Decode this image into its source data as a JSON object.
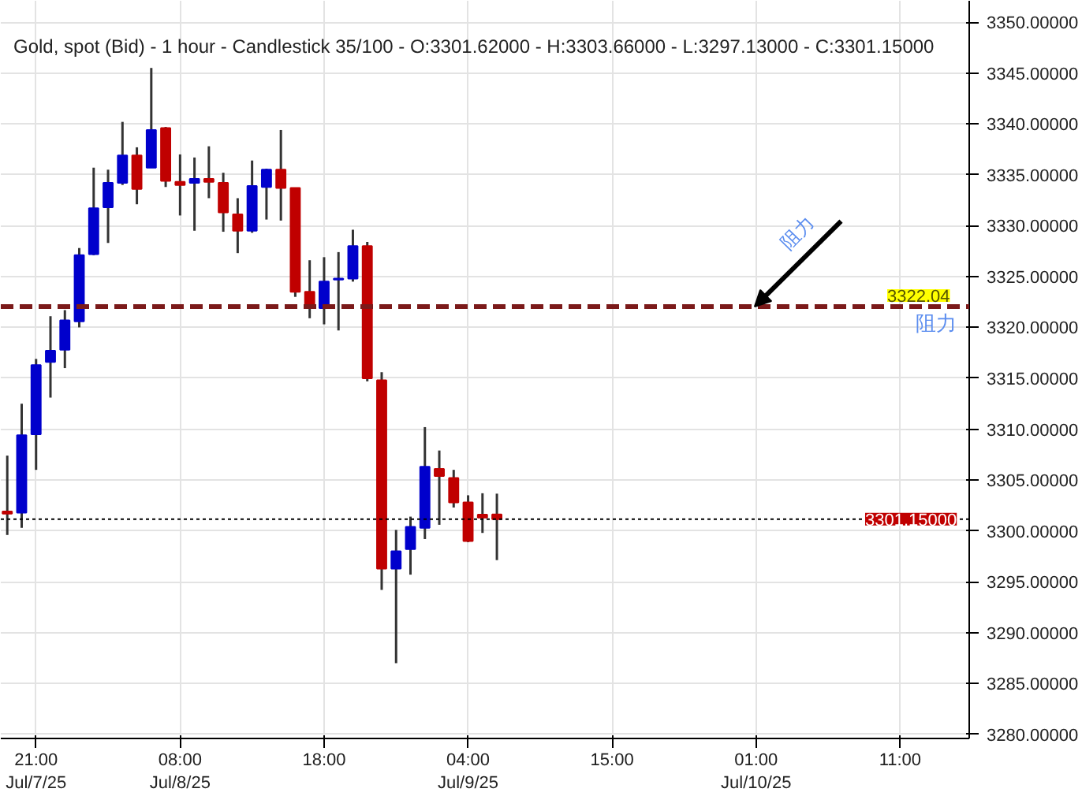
{
  "chart_data": {
    "type": "candlestick",
    "title": "Gold, spot (Bid) - 1 hour - Candlestick   35/100 - O:3301.62000 - H:3303.66000 - L:3297.13000 - C:3301.15000",
    "categories": [
      null,
      null,
      "21:00\nJul/7/25",
      null,
      null,
      null,
      null,
      null,
      null,
      null,
      null,
      null,
      "08:00\nJul/8/25",
      null,
      null,
      null,
      null,
      null,
      null,
      null,
      null,
      null,
      "18:00",
      null,
      null,
      null,
      null,
      null,
      null,
      null,
      null,
      null,
      "04:00\nJul/9/25",
      null,
      null,
      null,
      null,
      null,
      null,
      null,
      null,
      null,
      "15:00",
      null,
      null,
      null,
      null,
      null,
      null,
      null,
      null,
      null,
      "01:00\nJul/10/25",
      null,
      null,
      null,
      null,
      null,
      null,
      null,
      null,
      null,
      "11:00",
      null,
      null,
      null,
      null
    ],
    "ohlc": [
      [
        3301.9,
        3307.4,
        3299.6,
        3301.7
      ],
      [
        3301.8,
        3312.5,
        3300.3,
        3309.4
      ],
      [
        3309.5,
        3316.9,
        3306.0,
        3316.3
      ],
      [
        3316.6,
        3321.1,
        3313.1,
        3317.7
      ],
      [
        3317.8,
        3321.7,
        3316.0,
        3320.7
      ],
      [
        3320.6,
        3327.8,
        3320.0,
        3327.1
      ],
      [
        3327.2,
        3335.7,
        3327.1,
        3331.7
      ],
      [
        3331.8,
        3335.5,
        3328.3,
        3334.2
      ],
      [
        3334.2,
        3340.2,
        3334.0,
        3336.9
      ],
      [
        3336.9,
        3337.7,
        3332.1,
        3333.6
      ],
      [
        3335.7,
        3345.5,
        3335.7,
        3339.4
      ],
      [
        3339.6,
        3339.7,
        3333.8,
        3334.4
      ],
      [
        3334.3,
        3337.0,
        3331.0,
        3334.0
      ],
      [
        3334.2,
        3336.7,
        3329.5,
        3334.6
      ],
      [
        3334.6,
        3337.8,
        3332.7,
        3334.3
      ],
      [
        3334.2,
        3335.2,
        3329.4,
        3331.3
      ],
      [
        3331.1,
        3332.7,
        3327.3,
        3329.5
      ],
      [
        3329.5,
        3336.4,
        3329.3,
        3333.9
      ],
      [
        3333.8,
        3335.6,
        3330.6,
        3335.5
      ],
      [
        3335.5,
        3339.4,
        3330.5,
        3333.7
      ],
      [
        3333.7,
        3333.7,
        3323.0,
        3323.5
      ],
      [
        3323.5,
        3326.6,
        3320.9,
        3321.9
      ],
      [
        3321.9,
        3326.9,
        3320.3,
        3324.5
      ],
      [
        3324.7,
        3327.4,
        3319.7,
        3324.8
      ],
      [
        3324.8,
        3329.6,
        3324.5,
        3328.0
      ],
      [
        3328.0,
        3328.4,
        3314.7,
        3315.0
      ],
      [
        3314.8,
        3315.6,
        3294.2,
        3296.3
      ],
      [
        3296.3,
        3300.1,
        3287.0,
        3298.0
      ],
      [
        3298.2,
        3301.4,
        3295.7,
        3300.4
      ],
      [
        3300.3,
        3310.2,
        3299.2,
        3306.3
      ],
      [
        3306.1,
        3307.9,
        3300.6,
        3305.4
      ],
      [
        3305.2,
        3306.0,
        3302.3,
        3302.8
      ],
      [
        3302.8,
        3303.5,
        3298.9,
        3299.0
      ],
      [
        3301.6,
        3303.7,
        3299.8,
        3301.3
      ],
      [
        3301.62,
        3303.66,
        3297.13,
        3301.15
      ],
      null,
      null,
      null,
      null,
      null,
      null,
      null,
      null,
      null,
      null,
      null,
      null,
      null,
      null,
      null,
      null,
      null,
      null,
      null,
      null,
      null,
      null,
      null,
      null,
      null,
      null,
      null,
      null,
      null,
      null,
      null,
      null
    ],
    "colors": [
      "#c00000",
      "#0000cc",
      "#0000cc",
      "#0000cc",
      "#0000cc",
      "#0000cc",
      "#0000cc",
      "#0000cc",
      "#0000cc",
      "#c00000",
      "#0000cc",
      "#c00000",
      "#c00000",
      "#0000cc",
      "#c00000",
      "#c00000",
      "#c00000",
      "#0000cc",
      "#0000cc",
      "#c00000",
      "#c00000",
      "#c00000",
      "#0000cc",
      "#0000cc",
      "#0000cc",
      "#c00000",
      "#c00000",
      "#0000cc",
      "#0000cc",
      "#0000cc",
      "#c00000",
      "#c00000",
      "#c00000",
      "#c00000",
      "#c00000",
      null,
      null,
      null,
      null,
      null,
      null,
      null,
      null,
      null,
      null,
      null,
      null,
      null,
      null,
      null,
      null,
      null,
      null,
      null,
      null,
      null,
      null,
      null,
      null,
      null,
      null,
      null,
      null,
      null,
      null,
      null,
      null
    ],
    "ylim": [
      3279.6,
      3352.1
    ],
    "yticks": [
      {
        "value": 3280,
        "label": "3280.00000"
      },
      {
        "value": 3285,
        "label": "3285.00000"
      },
      {
        "value": 3290,
        "label": "3290.00000"
      },
      {
        "value": 3295,
        "label": "3295.00000"
      },
      {
        "value": 3300,
        "label": "3300.00000"
      },
      {
        "value": 3305,
        "label": "3305.00000"
      },
      {
        "value": 3310,
        "label": "3310.00000"
      },
      {
        "value": 3315,
        "label": "3315.00000"
      },
      {
        "value": 3320,
        "label": "3320.00000"
      },
      {
        "value": 3325,
        "label": "3325.00000"
      },
      {
        "value": 3330,
        "label": "3330.00000"
      },
      {
        "value": 3335,
        "label": "3335.00000"
      },
      {
        "value": 3340,
        "label": "3340.00000"
      },
      {
        "value": 3345,
        "label": "3345.00000"
      },
      {
        "value": 3350,
        "label": "3350.00000"
      }
    ],
    "ref_lines": [
      {
        "axis": "y",
        "value": 3322.04,
        "label": "3322.04",
        "color": "#7b1a1a",
        "line_style": "dashed"
      },
      {
        "axis": "y",
        "value": 3301.15,
        "label": "3301.15000",
        "color": "#000000",
        "line_style": "dotted"
      }
    ],
    "annotations": [
      {
        "text": "阻力",
        "y": 3322.04
      },
      "阻力"
    ],
    "grid": true
  }
}
